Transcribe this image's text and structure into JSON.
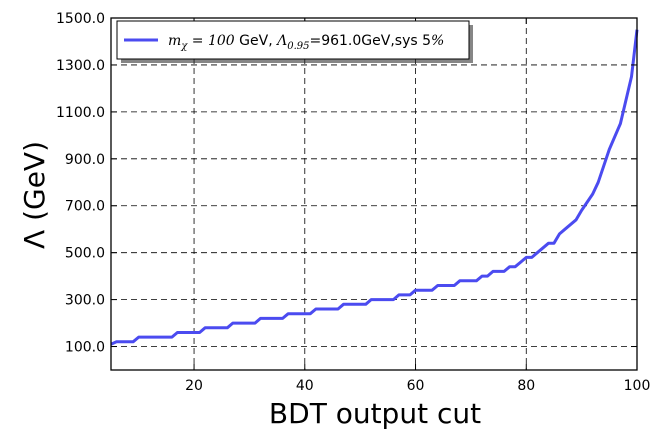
{
  "chart_data": {
    "type": "line",
    "xlabel": "BDT output cut",
    "ylabel": "Λ (GeV)",
    "xlim": [
      5,
      100
    ],
    "ylim": [
      0,
      1500
    ],
    "x_ticks": [
      20,
      40,
      60,
      80,
      100
    ],
    "y_ticks": [
      100,
      300,
      500,
      700,
      900,
      1100,
      1300,
      1500
    ],
    "y_tick_labels": [
      "100.0",
      "300.0",
      "500.0",
      "700.0",
      "900.0",
      "1100.0",
      "1300.0",
      "1500.0"
    ],
    "grid": true,
    "legend_placement": "top-left",
    "colors": {
      "series": "#4b4bf0",
      "grid": "#000000"
    },
    "legend": {
      "math_prefix": "m",
      "math_sub": "χ",
      "math_eq": " = 100",
      "text_mid": " GeV, ",
      "lambda": "Λ",
      "lambda_sub": "0.95",
      "text_tail": "=961.0GeV,sys 5",
      "percent": "%"
    },
    "series": [
      {
        "x": [
          5,
          6,
          9,
          10,
          16,
          17,
          21,
          22,
          26,
          27,
          31,
          32,
          36,
          37,
          41,
          42,
          46,
          47,
          51,
          52,
          56,
          57,
          59,
          60,
          63,
          64,
          67,
          68,
          71,
          72,
          73,
          74,
          76,
          77,
          78,
          79,
          80,
          81,
          82,
          84,
          85,
          86,
          87,
          89,
          90,
          92,
          93,
          95,
          97,
          99,
          100
        ],
        "values": [
          110,
          120,
          120,
          140,
          140,
          160,
          160,
          180,
          180,
          200,
          200,
          220,
          220,
          240,
          240,
          260,
          260,
          280,
          280,
          300,
          300,
          320,
          320,
          340,
          340,
          360,
          360,
          380,
          380,
          400,
          400,
          420,
          420,
          440,
          440,
          460,
          480,
          480,
          500,
          540,
          540,
          580,
          600,
          640,
          680,
          750,
          800,
          940,
          1050,
          1250,
          1450
        ]
      }
    ]
  }
}
